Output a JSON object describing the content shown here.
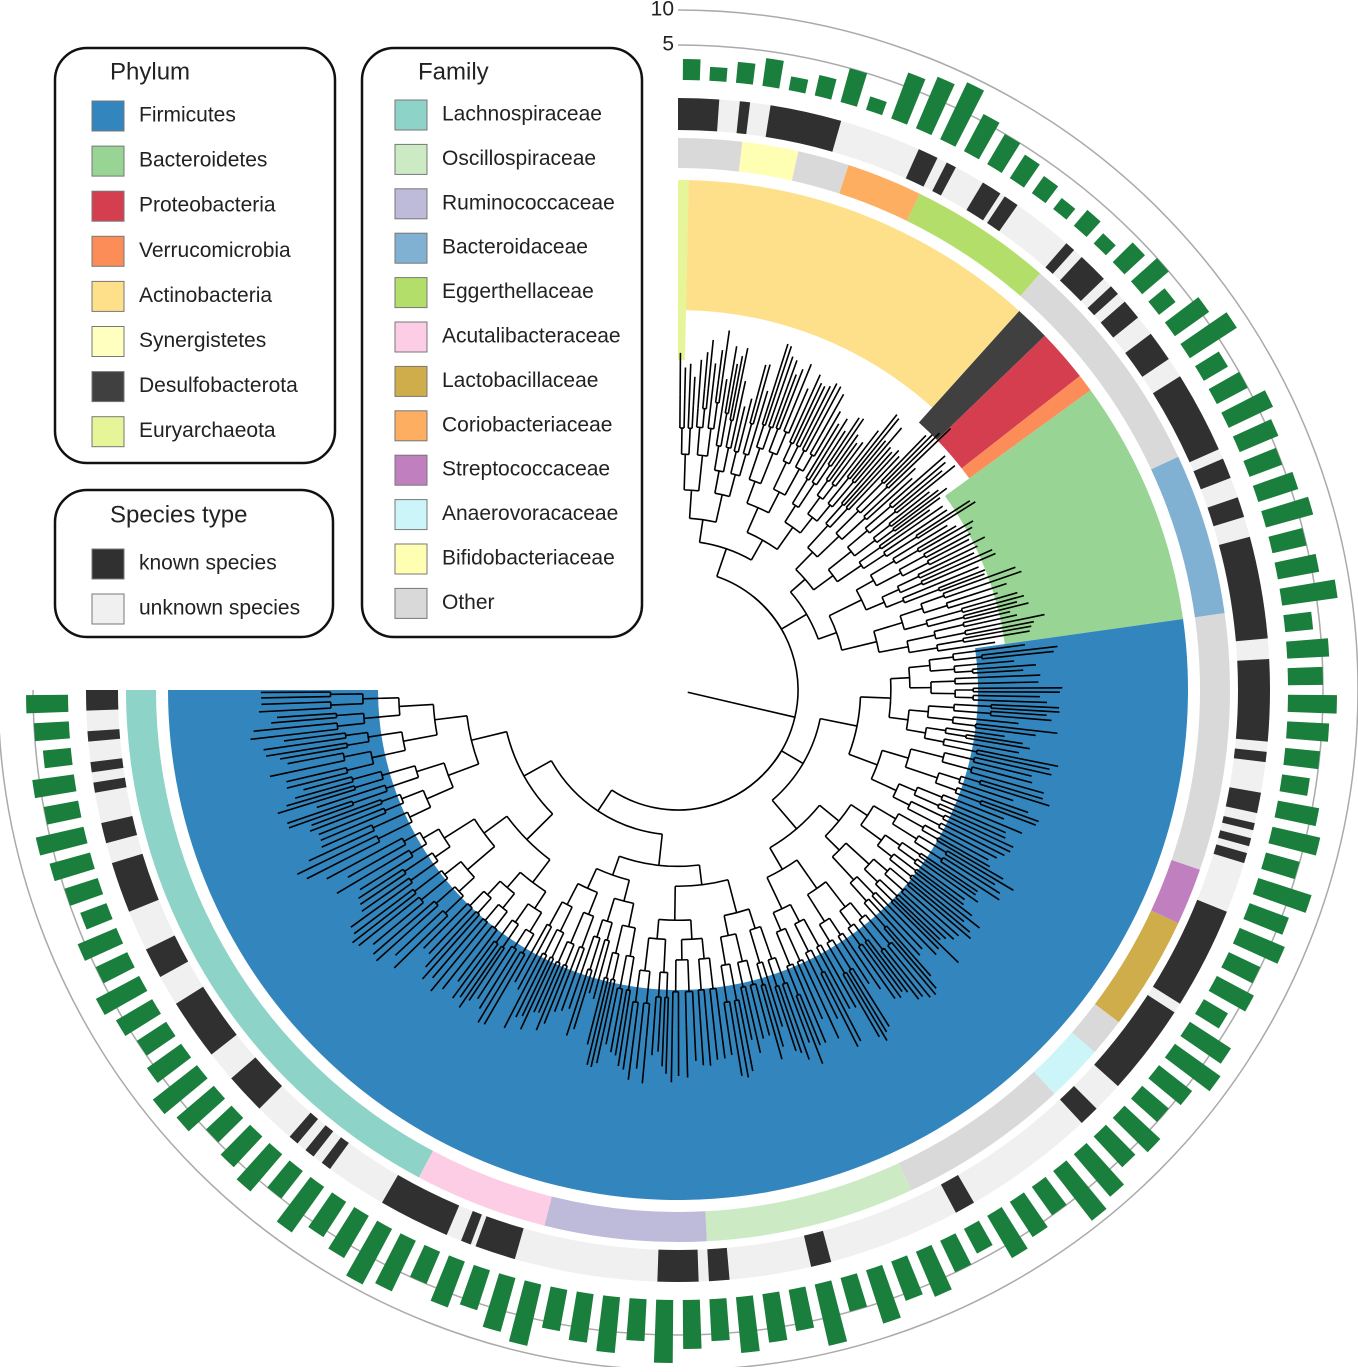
{
  "legend_phylum": {
    "title": "Phylum",
    "items": [
      {
        "label": "Firmicutes",
        "color": "#3286bd"
      },
      {
        "label": "Bacteroidetes",
        "color": "#98d594"
      },
      {
        "label": "Proteobacteria",
        "color": "#d53e4f"
      },
      {
        "label": "Verrucomicrobia",
        "color": "#fc8d59"
      },
      {
        "label": "Actinobacteria",
        "color": "#fee08b"
      },
      {
        "label": "Synergistetes",
        "color": "#ffffbf"
      },
      {
        "label": "Desulfobacterota",
        "color": "#404040"
      },
      {
        "label": "Euryarchaeota",
        "color": "#e6f598"
      }
    ]
  },
  "legend_family": {
    "title": "Family",
    "items": [
      {
        "label": "Lachnospiraceae",
        "color": "#8dd3c7"
      },
      {
        "label": "Oscillospiraceae",
        "color": "#ccebc5"
      },
      {
        "label": "Ruminococcaceae",
        "color": "#bebada"
      },
      {
        "label": "Bacteroidaceae",
        "color": "#80b1d3"
      },
      {
        "label": "Eggerthellaceae",
        "color": "#b3de69"
      },
      {
        "label": "Acutalibacteraceae",
        "color": "#fccde5"
      },
      {
        "label": "Lactobacillaceae",
        "color": "#d0ad4b"
      },
      {
        "label": "Coriobacteriaceae",
        "color": "#fdae61"
      },
      {
        "label": "Streptococcaceae",
        "color": "#c080c0"
      },
      {
        "label": "Anaerovoracaceae",
        "color": "#ccf5fa"
      },
      {
        "label": "Bifidobacteriaceae",
        "color": "#ffffb3"
      },
      {
        "label": "Other",
        "color": "#d9d9d9"
      }
    ]
  },
  "legend_species": {
    "title": "Species type",
    "items": [
      {
        "label": "known species",
        "color": "#303030"
      },
      {
        "label": "unknown species",
        "color": "#f0f0f0"
      }
    ]
  },
  "scale": {
    "ticks": [
      5,
      10
    ]
  },
  "bars": {
    "color": "#1a7f3c",
    "values": [
      3,
      2,
      3,
      4,
      2,
      3,
      5,
      2,
      7,
      8,
      9,
      6,
      5,
      4,
      3,
      2,
      3,
      2,
      4,
      5,
      3,
      6,
      8,
      4,
      5,
      7,
      6,
      5,
      6,
      7,
      5,
      6,
      8,
      4,
      6,
      5,
      7,
      6,
      5,
      4,
      6,
      7,
      5,
      8,
      6,
      7,
      5,
      6,
      4,
      7,
      8,
      6,
      5,
      7,
      6,
      8,
      9,
      5,
      6,
      7,
      4,
      5,
      7,
      6,
      8,
      5,
      9,
      6,
      7,
      8,
      6,
      7,
      9,
      6,
      8,
      7,
      6,
      9,
      8,
      6,
      7,
      5,
      8,
      9,
      7,
      6,
      8,
      5,
      7,
      6,
      5,
      7,
      8,
      6,
      5,
      6,
      7,
      5,
      6,
      4,
      5,
      6,
      7,
      5,
      6,
      4,
      5,
      6
    ]
  }
}
